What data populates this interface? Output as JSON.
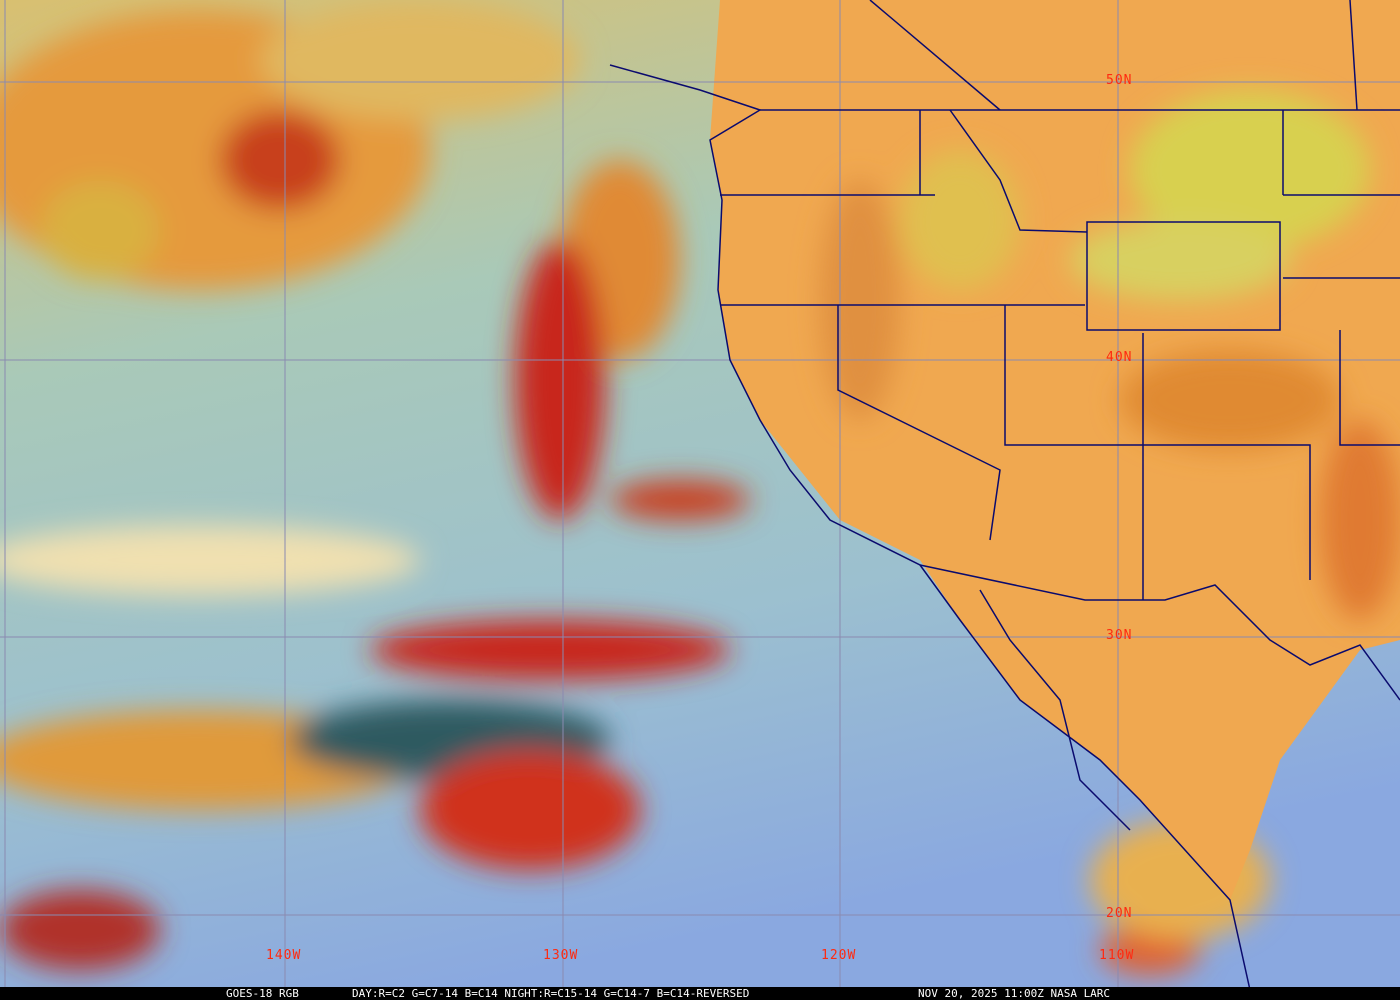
{
  "map": {
    "latitude_labels": [
      "50N",
      "40N",
      "30N",
      "20N"
    ],
    "longitude_labels": [
      "140W",
      "130W",
      "120W",
      "110W"
    ],
    "colors": {
      "grid": "#8a8ab0",
      "borders": "#0a0a6e",
      "labels": "#ff2a10",
      "ocean": "#8fb9c9",
      "land": "#f0a850",
      "cloud_red": "#c8281e"
    }
  },
  "caption": {
    "satellite": "GOES-18 RGB",
    "recipe": "DAY:R=C2 G=C7-14 B=C14 NIGHT:R=C15-14 G=C14-7 B=C14-REVERSED",
    "timestamp": "NOV 20, 2025 11:00Z NASA LARC"
  }
}
